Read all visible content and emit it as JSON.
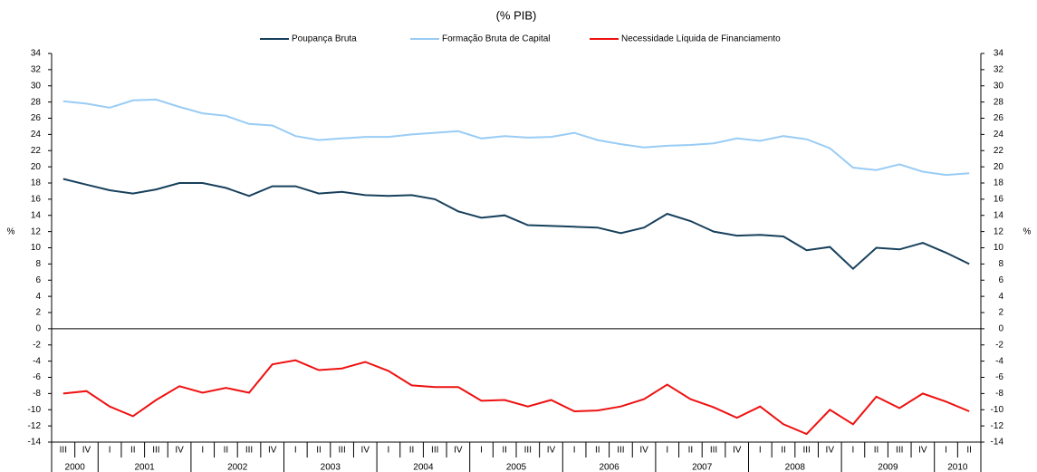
{
  "chart_data": {
    "type": "line",
    "title": "(% PIB)",
    "ylabel": "%",
    "y2label": "%",
    "categories": [
      "III",
      "IV",
      "I",
      "II",
      "III",
      "IV",
      "I",
      "II",
      "III",
      "IV",
      "I",
      "II",
      "III",
      "IV",
      "I",
      "II",
      "III",
      "IV",
      "I",
      "II",
      "III",
      "IV",
      "I",
      "II",
      "III",
      "IV",
      "I",
      "II",
      "III",
      "IV",
      "I",
      "II",
      "III",
      "IV",
      "I",
      "II",
      "III",
      "IV",
      "I",
      "II"
    ],
    "years": [
      "2000",
      "2001",
      "2002",
      "2003",
      "2004",
      "2005",
      "2006",
      "2007",
      "2008",
      "2009",
      "2010"
    ],
    "series": [
      {
        "name": "Poupança Bruta",
        "color": "#17405c",
        "values": [
          18.5,
          17.8,
          17.1,
          16.7,
          17.2,
          18.0,
          18.0,
          17.4,
          16.4,
          17.6,
          17.6,
          16.7,
          16.9,
          16.5,
          16.4,
          16.5,
          16.0,
          14.5,
          13.7,
          14.0,
          12.8,
          12.7,
          12.6,
          12.5,
          11.8,
          12.5,
          14.2,
          13.3,
          12.0,
          11.5,
          11.6,
          11.4,
          9.7,
          10.1,
          7.4,
          10.0,
          9.8,
          10.6,
          9.4,
          8.0
        ]
      },
      {
        "name": "Formação Bruta de Capital",
        "color": "#99ccf5",
        "values": [
          28.1,
          27.8,
          27.3,
          28.2,
          28.3,
          27.4,
          26.6,
          26.3,
          25.3,
          25.1,
          23.8,
          23.3,
          23.5,
          23.7,
          23.7,
          24.0,
          24.2,
          24.4,
          23.5,
          23.8,
          23.6,
          23.7,
          24.2,
          23.3,
          22.8,
          22.4,
          22.6,
          22.7,
          22.9,
          23.5,
          23.2,
          23.8,
          23.4,
          22.3,
          19.9,
          19.6,
          20.3,
          19.4,
          19.0,
          19.2
        ]
      },
      {
        "name": "Necessidade Líquida de Financiamento",
        "color": "#ee1111",
        "values": [
          -8.0,
          -7.7,
          -9.6,
          -10.8,
          -8.8,
          -7.1,
          -7.9,
          -7.3,
          -7.9,
          -4.4,
          -3.9,
          -5.1,
          -4.9,
          -4.1,
          -5.2,
          -7.0,
          -7.2,
          -7.2,
          -8.9,
          -8.8,
          -9.6,
          -8.8,
          -10.2,
          -10.1,
          -9.6,
          -8.7,
          -6.9,
          -8.7,
          -9.7,
          -11.0,
          -9.6,
          -11.8,
          -13.0,
          -10.0,
          -11.8,
          -8.4,
          -9.8,
          -8.0,
          -9.0,
          -10.2
        ]
      }
    ],
    "ylim": [
      -14,
      34
    ],
    "yticks": [
      -14,
      -12,
      -10,
      -8,
      -6,
      -4,
      -2,
      0,
      2,
      4,
      6,
      8,
      10,
      12,
      14,
      16,
      18,
      20,
      22,
      24,
      26,
      28,
      30,
      32,
      34
    ]
  }
}
